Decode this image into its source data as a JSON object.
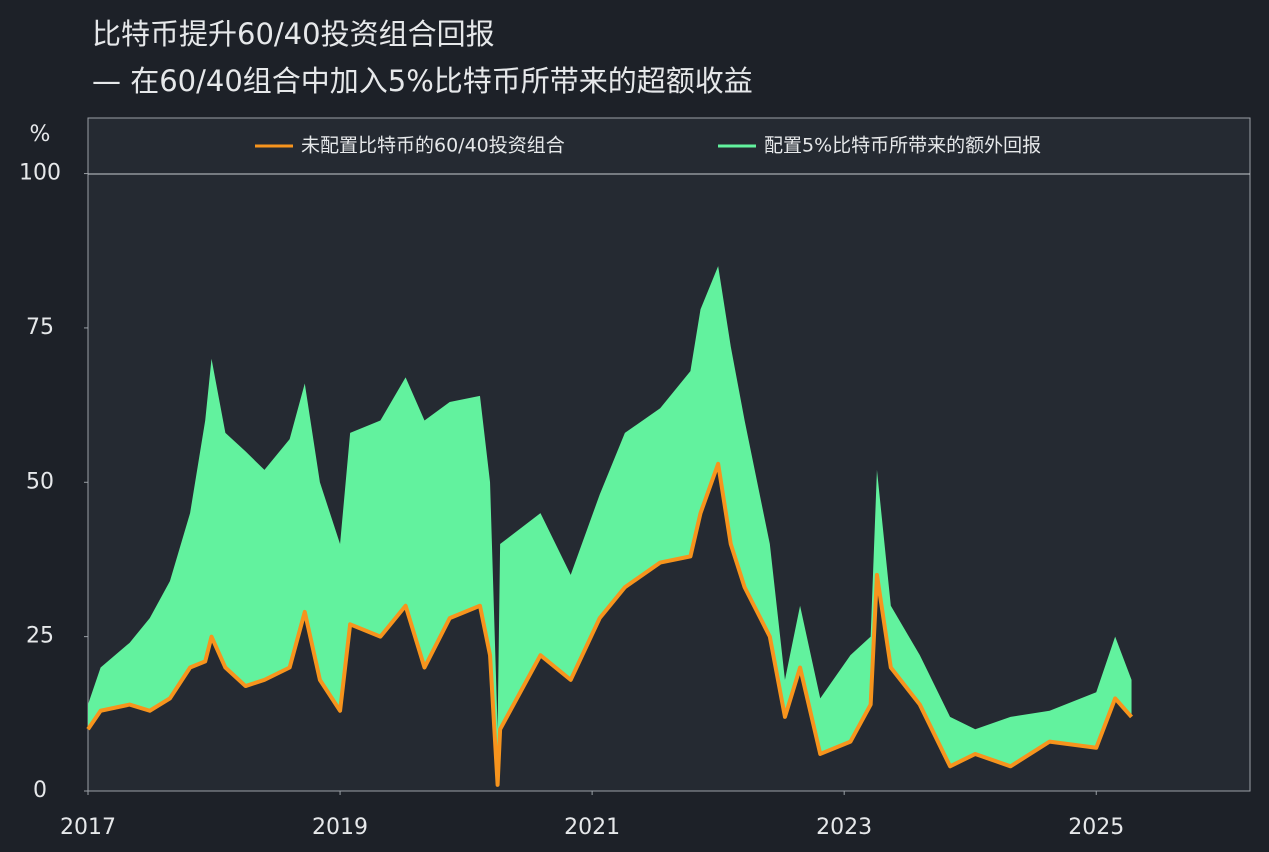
{
  "chart_data": {
    "type": "stacked-area-line",
    "title": "比特币提升60/40投资组合回报",
    "subtitle": "— 在60/40组合中加入5%比特币所带来的超额收益",
    "y_label": "%",
    "x": [
      2017.0,
      2017.1,
      2017.33,
      2017.49,
      2017.65,
      2017.81,
      2017.93,
      2017.98,
      2018.09,
      2018.25,
      2018.4,
      2018.6,
      2018.72,
      2018.84,
      2019.0,
      2019.08,
      2019.32,
      2019.52,
      2019.67,
      2019.87,
      2020.11,
      2020.19,
      2020.25,
      2020.27,
      2020.59,
      2020.83,
      2021.06,
      2021.26,
      2021.54,
      2021.78,
      2021.86,
      2022.0,
      2022.1,
      2022.21,
      2022.41,
      2022.53,
      2022.65,
      2022.81,
      2023.05,
      2023.21,
      2023.26,
      2023.37,
      2023.6,
      2023.84,
      2024.04,
      2024.32,
      2024.63,
      2025.0,
      2025.15,
      2025.28
    ],
    "series": [
      {
        "name": "未配置比特币的60/40投资组合",
        "color": "#f7941d",
        "values": [
          10,
          13,
          14,
          13,
          15,
          20,
          21,
          25,
          20,
          17,
          18,
          20,
          29,
          18,
          13,
          27,
          25,
          30,
          20,
          28,
          30,
          22,
          1,
          10,
          22,
          18,
          28,
          33,
          37,
          38,
          45,
          53,
          40,
          33,
          25,
          12,
          20,
          6,
          8,
          14,
          35,
          20,
          14,
          4,
          6,
          4,
          8,
          7,
          15,
          12
        ]
      },
      {
        "name": "配置5%比特币所带来的额外回报",
        "color": "#62f29e",
        "values": [
          4,
          7,
          10,
          15,
          19,
          25,
          39,
          45,
          38,
          38,
          34,
          37,
          37,
          32,
          27,
          31,
          35,
          37,
          40,
          35,
          34,
          28,
          9,
          30,
          23,
          17,
          20,
          25,
          25,
          30,
          33,
          32,
          32,
          27,
          15,
          6,
          10,
          9,
          14,
          11,
          17,
          10,
          8,
          8,
          4,
          8,
          5,
          9,
          10,
          6
        ]
      }
    ],
    "xlim": [
      2017,
      2026.22
    ],
    "xticks": [
      2017,
      2019,
      2021,
      2023,
      2025
    ],
    "ylim": [
      0,
      109
    ],
    "yticks": [
      0,
      25,
      50,
      75,
      100
    ],
    "background": "#1d2128",
    "plot_background": "#252a32"
  }
}
